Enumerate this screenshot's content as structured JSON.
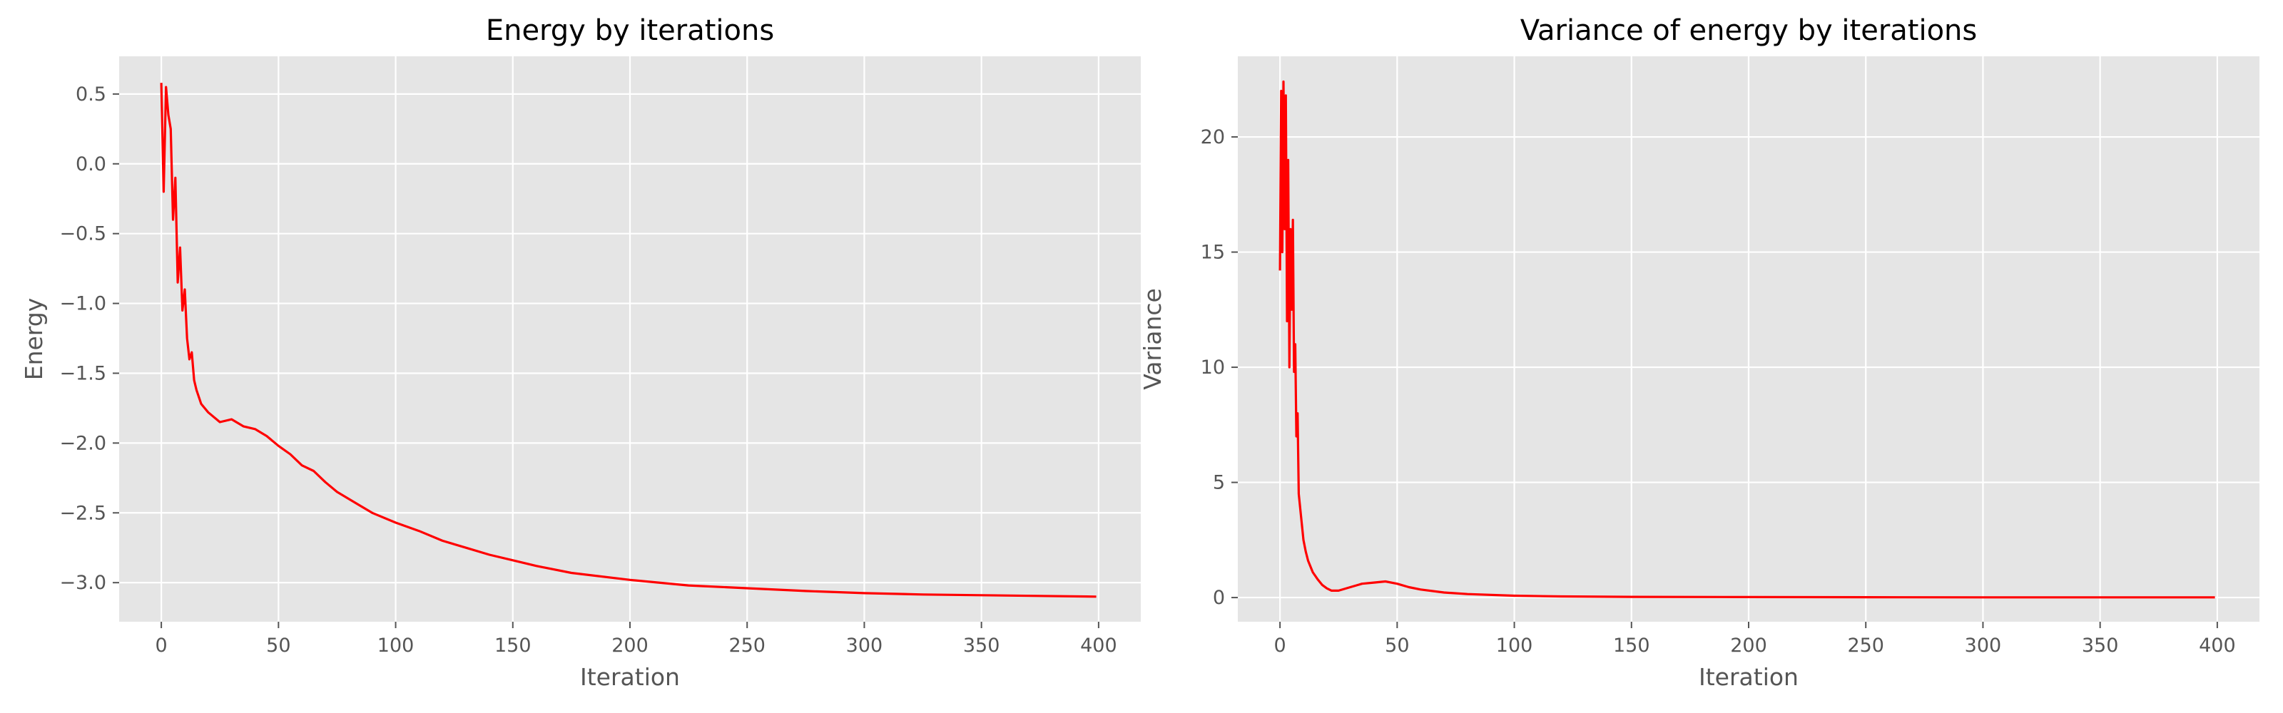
{
  "chart_data": [
    {
      "type": "line",
      "title": "Energy by iterations",
      "xlabel": "Iteration",
      "ylabel": "Energy",
      "xlim": [
        -18,
        418
      ],
      "ylim": [
        -3.28,
        0.77
      ],
      "xticks": [
        0,
        50,
        100,
        150,
        200,
        250,
        300,
        350,
        400
      ],
      "yticks": [
        0.5,
        0.0,
        -0.5,
        -1.0,
        -1.5,
        -2.0,
        -2.5,
        -3.0
      ],
      "xtick_labels": [
        "0",
        "50",
        "100",
        "150",
        "200",
        "250",
        "300",
        "350",
        "400"
      ],
      "ytick_labels": [
        "0.5",
        "0.0",
        "−0.5",
        "−1.0",
        "−1.5",
        "−2.0",
        "−2.5",
        "−3.0"
      ],
      "grid": true,
      "color": "#ff0000",
      "x": [
        0,
        1,
        2,
        3,
        4,
        5,
        6,
        7,
        8,
        9,
        10,
        11,
        12,
        13,
        14,
        15,
        17,
        20,
        25,
        30,
        35,
        40,
        45,
        50,
        55,
        60,
        65,
        70,
        75,
        80,
        90,
        100,
        110,
        120,
        130,
        140,
        150,
        160,
        175,
        200,
        225,
        250,
        275,
        300,
        325,
        350,
        375,
        399
      ],
      "y": [
        0.58,
        -0.2,
        0.55,
        0.35,
        0.25,
        -0.4,
        -0.1,
        -0.85,
        -0.6,
        -1.05,
        -0.9,
        -1.25,
        -1.4,
        -1.35,
        -1.55,
        -1.62,
        -1.72,
        -1.78,
        -1.85,
        -1.83,
        -1.88,
        -1.9,
        -1.95,
        -2.02,
        -2.08,
        -2.16,
        -2.2,
        -2.28,
        -2.35,
        -2.4,
        -2.5,
        -2.57,
        -2.63,
        -2.7,
        -2.75,
        -2.8,
        -2.84,
        -2.88,
        -2.93,
        -2.98,
        -3.02,
        -3.04,
        -3.06,
        -3.075,
        -3.085,
        -3.09,
        -3.095,
        -3.1
      ]
    },
    {
      "type": "line",
      "title": "Variance of energy by iterations",
      "xlabel": "Iteration",
      "ylabel": "Variance",
      "xlim": [
        -18,
        418
      ],
      "ylim": [
        -1.05,
        23.5
      ],
      "xticks": [
        0,
        50,
        100,
        150,
        200,
        250,
        300,
        350,
        400
      ],
      "yticks": [
        0,
        5,
        10,
        15,
        20
      ],
      "xtick_labels": [
        "0",
        "50",
        "100",
        "150",
        "200",
        "250",
        "300",
        "350",
        "400"
      ],
      "ytick_labels": [
        "0",
        "5",
        "10",
        "15",
        "20"
      ],
      "grid": true,
      "color": "#ff0000",
      "x": [
        0,
        0.5,
        1,
        1.5,
        2,
        2.5,
        3,
        3.5,
        4,
        4.5,
        5,
        5.5,
        6,
        6.5,
        7,
        7.5,
        8,
        9,
        10,
        11,
        12,
        14,
        16,
        18,
        20,
        22,
        25,
        30,
        35,
        40,
        45,
        50,
        55,
        60,
        70,
        80,
        100,
        120,
        150,
        200,
        250,
        300,
        350,
        399
      ],
      "y": [
        14.2,
        22.0,
        15.0,
        22.4,
        16.0,
        21.8,
        12.0,
        19.0,
        10.0,
        16.0,
        12.5,
        16.4,
        9.8,
        11.0,
        7.0,
        8.0,
        4.5,
        3.5,
        2.5,
        2.0,
        1.6,
        1.1,
        0.8,
        0.55,
        0.4,
        0.3,
        0.3,
        0.45,
        0.6,
        0.65,
        0.7,
        0.6,
        0.45,
        0.35,
        0.22,
        0.15,
        0.08,
        0.05,
        0.03,
        0.02,
        0.015,
        0.01,
        0.01,
        0.01
      ]
    }
  ]
}
